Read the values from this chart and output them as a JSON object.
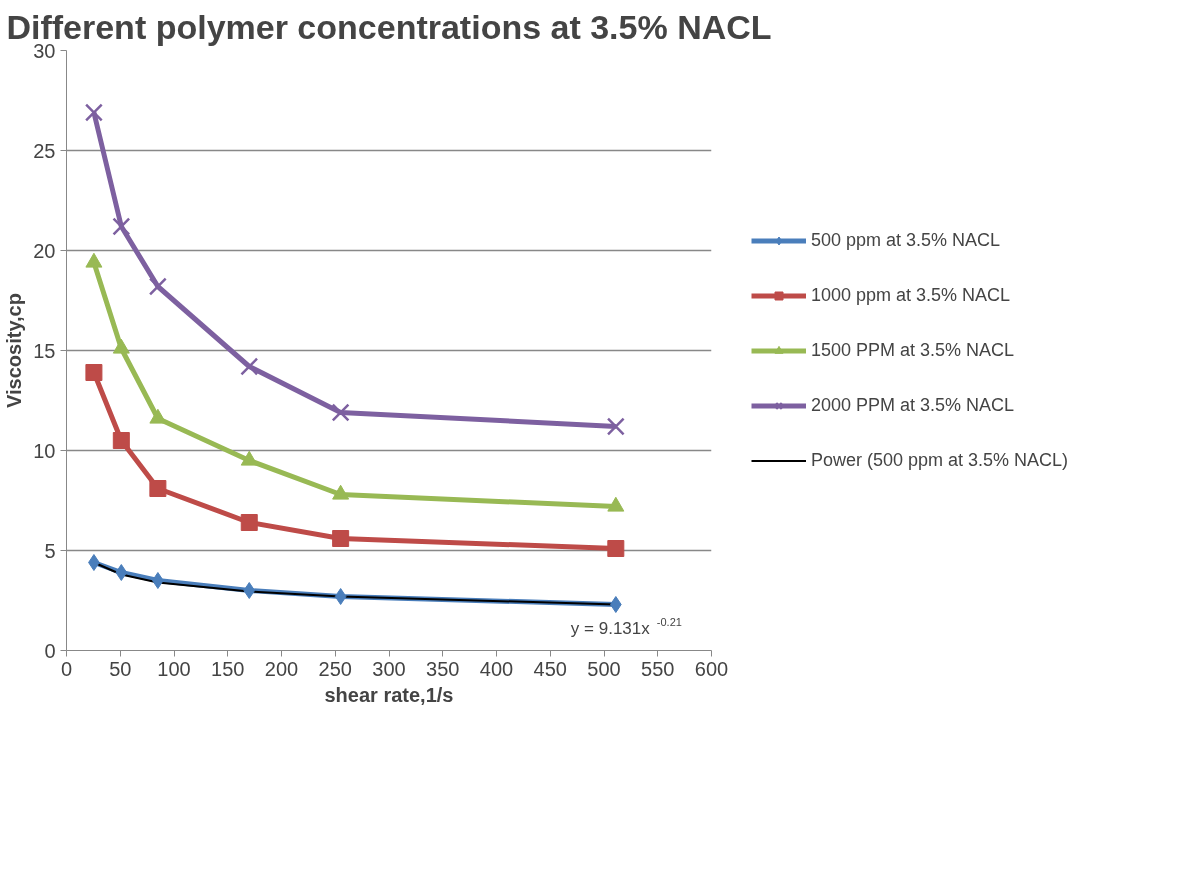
{
  "chart_data": {
    "type": "line",
    "title": "Different polymer concentrations at 3.5% NACL",
    "xlabel": "shear rate,1/s",
    "ylabel": "Viscosity,cp",
    "x": [
      25.5,
      51,
      85,
      170,
      255,
      511
    ],
    "series": [
      {
        "name": "500 ppm at 3.5% NACL",
        "color": "#4a7ebb",
        "marker": "diamond",
        "values": [
          4.4,
          3.9,
          3.5,
          3.0,
          2.7,
          2.3
        ]
      },
      {
        "name": "1000 ppm at 3.5% NACL",
        "color": "#be4b48",
        "marker": "square",
        "values": [
          13.9,
          10.5,
          8.1,
          6.4,
          5.6,
          5.1
        ]
      },
      {
        "name": "1500 PPM at 3.5% NACL",
        "color": "#98b954",
        "marker": "triangle",
        "values": [
          19.4,
          15.1,
          11.6,
          9.5,
          7.8,
          7.2
        ]
      },
      {
        "name": "2000 PPM at 3.5% NACL",
        "color": "#7d60a0",
        "marker": "cross",
        "values": [
          26.9,
          21.2,
          18.2,
          14.2,
          11.9,
          11.2
        ]
      },
      {
        "name": "Power (500 ppm at 3.5% NACL)",
        "color": "#000000",
        "marker": "none",
        "x": [
          25.5,
          51,
          85,
          170,
          255,
          511
        ],
        "values": [
          4.4,
          3.8,
          3.4,
          2.95,
          2.7,
          2.3
        ]
      }
    ],
    "annotations": [
      {
        "text": "y = 9.131x$^{-0.21}$",
        "x": 511,
        "y": 2.3
      }
    ],
    "xlim": [
      0,
      600
    ],
    "xticks": [
      0,
      50,
      100,
      150,
      200,
      250,
      300,
      350,
      400,
      450,
      500,
      550,
      600
    ],
    "ylim": [
      0,
      30
    ],
    "yticks": [
      0,
      5,
      10,
      15,
      20,
      25,
      30
    ],
    "grid": "y",
    "legend": "right"
  }
}
